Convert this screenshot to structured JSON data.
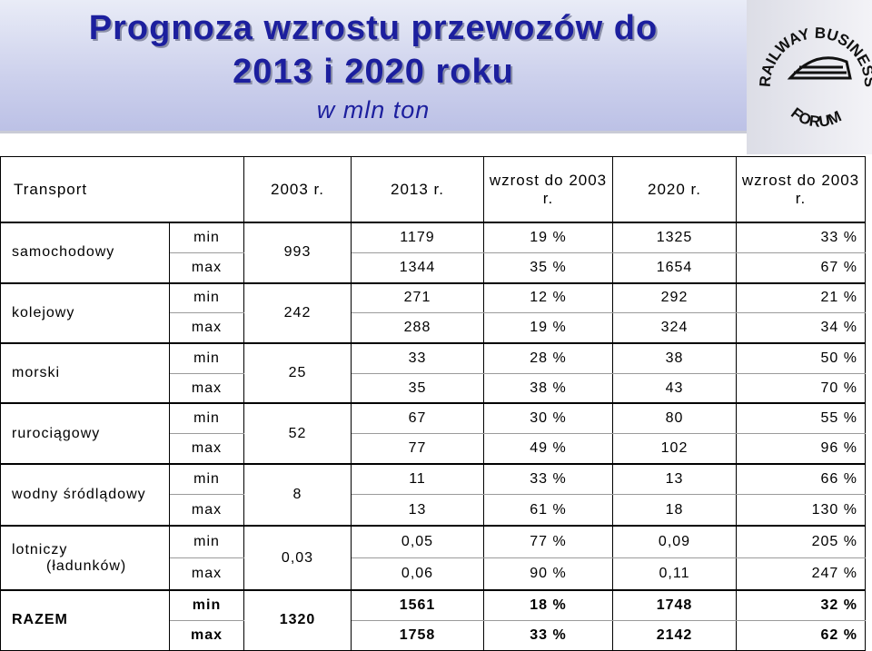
{
  "title": {
    "line1": "Prognoza wzrostu przewozów do",
    "line2": "2013 i 2020 roku",
    "subtitle": "w mln ton"
  },
  "logo": {
    "name": "railway-business-forum-logo",
    "top_text": "RAILWAY BUSINESS",
    "bottom_text": "FORUM"
  },
  "colors": {
    "title": "#1c1f9e",
    "band_top": "#e9ecf7",
    "band_bottom": "#bcc1e6"
  },
  "table": {
    "headers": {
      "transport": "Transport",
      "y2003": "2003 r.",
      "y2013": "2013 r.",
      "growth2013": "wzrost do 2003 r.",
      "y2020": "2020 r.",
      "growth2020": "wzrost do 2003 r."
    },
    "rows": [
      {
        "name": "samochodowy",
        "base": "993",
        "min": {
          "label": "min",
          "v2013": "1179",
          "g2013": "19 %",
          "v2020": "1325",
          "g2020": "33 %"
        },
        "max": {
          "label": "max",
          "v2013": "1344",
          "g2013": "35 %",
          "v2020": "1654",
          "g2020": "67 %"
        }
      },
      {
        "name": "kolejowy",
        "base": "242",
        "min": {
          "label": "min",
          "v2013": "271",
          "g2013": "12 %",
          "v2020": "292",
          "g2020": "21 %"
        },
        "max": {
          "label": "max",
          "v2013": "288",
          "g2013": "19 %",
          "v2020": "324",
          "g2020": "34 %"
        }
      },
      {
        "name": "morski",
        "base": "25",
        "min": {
          "label": "min",
          "v2013": "33",
          "g2013": "28 %",
          "v2020": "38",
          "g2020": "50 %"
        },
        "max": {
          "label": "max",
          "v2013": "35",
          "g2013": "38 %",
          "v2020": "43",
          "g2020": "70 %"
        }
      },
      {
        "name": "rurociągowy",
        "base": "52",
        "min": {
          "label": "min",
          "v2013": "67",
          "g2013": "30 %",
          "v2020": "80",
          "g2020": "55 %"
        },
        "max": {
          "label": "max",
          "v2013": "77",
          "g2013": "49 %",
          "v2020": "102",
          "g2020": "96 %"
        }
      },
      {
        "name": "wodny śródlądowy",
        "base": "8",
        "min": {
          "label": "min",
          "v2013": "11",
          "g2013": "33 %",
          "v2020": "13",
          "g2020": "66 %"
        },
        "max": {
          "label": "max",
          "v2013": "13",
          "g2013": "61 %",
          "v2020": "18",
          "g2020": "130 %"
        }
      },
      {
        "name_line1": "lotniczy",
        "name_line2": "(ładunków)",
        "base": "0,03",
        "min": {
          "label": "min",
          "v2013": "0,05",
          "g2013": "77 %",
          "v2020": "0,09",
          "g2020": "205 %"
        },
        "max": {
          "label": "max",
          "v2013": "0,06",
          "g2013": "90 %",
          "v2020": "0,11",
          "g2020": "247 %"
        }
      },
      {
        "name": "RAZEM",
        "base": "1320",
        "min": {
          "label": "min",
          "v2013": "1561",
          "g2013": "18 %",
          "v2020": "1748",
          "g2020": "32 %"
        },
        "max": {
          "label": "max",
          "v2013": "1758",
          "g2013": "33 %",
          "v2020": "2142",
          "g2020": "62 %"
        }
      }
    ]
  }
}
